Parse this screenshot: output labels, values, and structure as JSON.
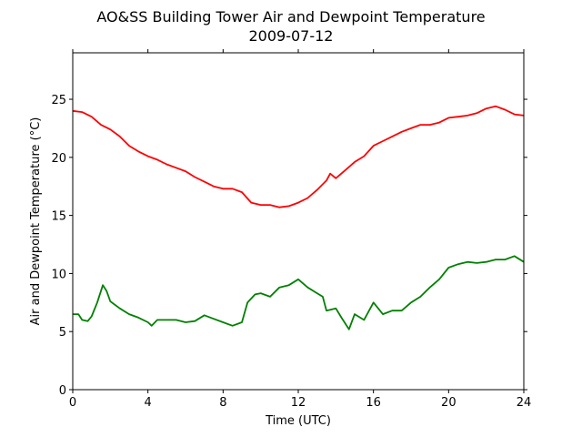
{
  "chart_data": {
    "type": "line",
    "title": "AO&SS Building Tower Air and Dewpoint Temperature",
    "subtitle": "2009-07-12",
    "xlabel": "Time (UTC)",
    "ylabel": "Air and Dewpoint Temperature (°C)",
    "xlim": [
      0,
      24
    ],
    "ylim": [
      0,
      29
    ],
    "xticks": [
      0,
      4,
      8,
      12,
      16,
      20,
      24
    ],
    "yticks": [
      0,
      5,
      10,
      15,
      20,
      25
    ],
    "grid": false,
    "series": [
      {
        "color": "#ff0000",
        "x": [
          0,
          0.5,
          1,
          1.5,
          2,
          2.5,
          3,
          3.5,
          4,
          4.5,
          5,
          5.5,
          6,
          6.5,
          7,
          7.5,
          8,
          8.5,
          9,
          9.5,
          10,
          10.5,
          11,
          11.5,
          12,
          12.5,
          13,
          13.5,
          13.7,
          14,
          14.5,
          15,
          15.5,
          16,
          16.5,
          17,
          17.5,
          18,
          18.5,
          19,
          19.5,
          20,
          20.5,
          21,
          21.5,
          22,
          22.5,
          23,
          23.5,
          24
        ],
        "y": [
          24.0,
          23.9,
          23.5,
          22.8,
          22.4,
          21.8,
          21.0,
          20.5,
          20.1,
          19.8,
          19.4,
          19.1,
          18.8,
          18.3,
          17.9,
          17.5,
          17.3,
          17.3,
          17.0,
          16.1,
          15.9,
          15.9,
          15.7,
          15.8,
          16.1,
          16.5,
          17.2,
          18.0,
          18.6,
          18.2,
          18.9,
          19.6,
          20.1,
          21.0,
          21.4,
          21.8,
          22.2,
          22.5,
          22.8,
          22.8,
          23.0,
          23.4,
          23.5,
          23.6,
          23.8,
          24.2,
          24.4,
          24.1,
          23.7,
          23.6
        ]
      },
      {
        "color": "#008000",
        "x": [
          0,
          0.3,
          0.5,
          0.8,
          1,
          1.3,
          1.6,
          1.8,
          2,
          2.5,
          3,
          3.5,
          4,
          4.2,
          4.5,
          5,
          5.5,
          6,
          6.5,
          7,
          7.5,
          8,
          8.5,
          9,
          9.3,
          9.7,
          10,
          10.5,
          11,
          11.5,
          12,
          12.5,
          13,
          13.3,
          13.5,
          14,
          14.3,
          14.7,
          15,
          15.5,
          16,
          16.5,
          17,
          17.5,
          18,
          18.5,
          19,
          19.5,
          20,
          20.5,
          21,
          21.5,
          22,
          22.5,
          23,
          23.5,
          24
        ],
        "y": [
          6.5,
          6.5,
          6.0,
          5.9,
          6.3,
          7.5,
          9.0,
          8.5,
          7.6,
          7.0,
          6.5,
          6.2,
          5.8,
          5.5,
          6.0,
          6.0,
          6.0,
          5.8,
          5.9,
          6.4,
          6.1,
          5.8,
          5.5,
          5.8,
          7.5,
          8.2,
          8.3,
          8.0,
          8.8,
          9.0,
          9.5,
          8.8,
          8.3,
          8.0,
          6.8,
          7.0,
          6.2,
          5.2,
          6.5,
          6.0,
          7.5,
          6.5,
          6.8,
          6.8,
          7.5,
          8.0,
          8.8,
          9.5,
          10.5,
          10.8,
          11.0,
          10.9,
          11.0,
          11.2,
          11.2,
          11.5,
          11.0
        ]
      }
    ]
  }
}
